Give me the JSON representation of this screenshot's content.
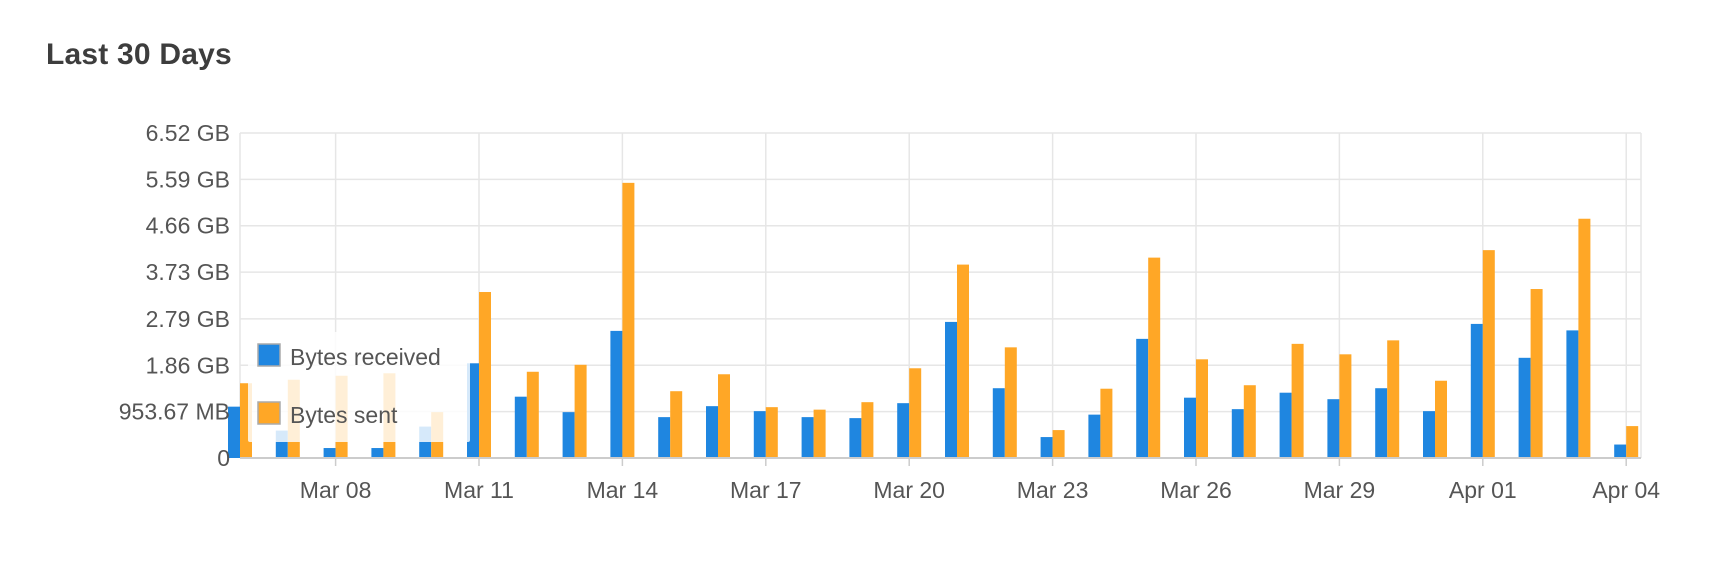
{
  "header": {
    "title": "Last 30 Days"
  },
  "colors": {
    "received": "#1f86e0",
    "sent": "#ffa726",
    "grid": "#e6e6e6",
    "axis": "#cccccc",
    "text": "#555555"
  },
  "chart_data": {
    "type": "bar",
    "title": "",
    "xlabel": "",
    "ylabel": "",
    "ylim": [
      0,
      6.52
    ],
    "y_unit": "GB",
    "y_ticks": [
      {
        "value": 0,
        "label": "0"
      },
      {
        "value": 0.931,
        "label": "953.67 MB"
      },
      {
        "value": 1.86,
        "label": "1.86 GB"
      },
      {
        "value": 2.79,
        "label": "2.79 GB"
      },
      {
        "value": 3.73,
        "label": "3.73 GB"
      },
      {
        "value": 4.66,
        "label": "4.66 GB"
      },
      {
        "value": 5.59,
        "label": "5.59 GB"
      },
      {
        "value": 6.52,
        "label": "6.52 GB"
      }
    ],
    "x_tick_labels": [
      "Mar 08",
      "Mar 11",
      "Mar 14",
      "Mar 17",
      "Mar 20",
      "Mar 23",
      "Mar 26",
      "Mar 29",
      "Apr 01",
      "Apr 04"
    ],
    "categories": [
      "Mar 06",
      "Mar 07",
      "Mar 08",
      "Mar 09",
      "Mar 10",
      "Mar 11",
      "Mar 12",
      "Mar 13",
      "Mar 14",
      "Mar 15",
      "Mar 16",
      "Mar 17",
      "Mar 18",
      "Mar 19",
      "Mar 20",
      "Mar 21",
      "Mar 22",
      "Mar 23",
      "Mar 24",
      "Mar 25",
      "Mar 26",
      "Mar 27",
      "Mar 28",
      "Mar 29",
      "Mar 30",
      "Mar 31",
      "Apr 01",
      "Apr 02",
      "Apr 03",
      "Apr 04"
    ],
    "series": [
      {
        "name": "Bytes received",
        "values": [
          1.03,
          0.55,
          0.2,
          0.2,
          0.63,
          1.9,
          1.23,
          0.92,
          2.55,
          0.82,
          1.04,
          0.94,
          0.82,
          0.8,
          1.1,
          2.73,
          1.4,
          0.42,
          0.87,
          2.39,
          1.21,
          0.98,
          1.31,
          1.18,
          1.4,
          0.94,
          2.69,
          2.01,
          2.56,
          0.27
        ]
      },
      {
        "name": "Bytes sent",
        "values": [
          1.5,
          1.57,
          1.65,
          1.7,
          0.92,
          3.33,
          1.73,
          1.87,
          5.52,
          1.34,
          1.68,
          1.02,
          0.97,
          1.12,
          1.8,
          3.88,
          2.22,
          0.56,
          1.39,
          4.02,
          1.98,
          1.46,
          2.29,
          2.08,
          2.36,
          1.55,
          4.17,
          3.39,
          4.8,
          0.64
        ]
      }
    ],
    "legend": {
      "placement": "left-middle",
      "items": [
        "Bytes received",
        "Bytes sent"
      ]
    },
    "grid": true
  }
}
